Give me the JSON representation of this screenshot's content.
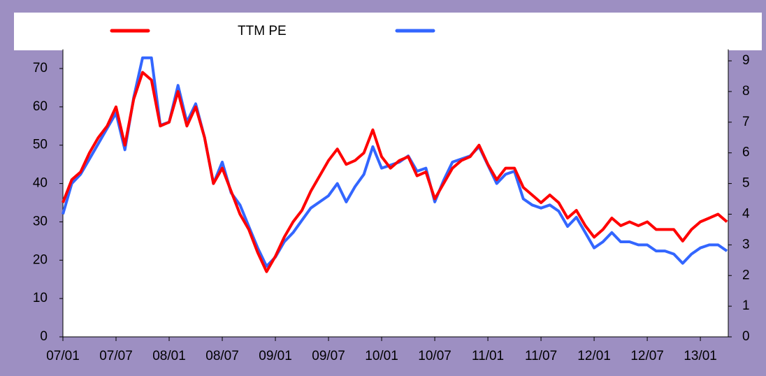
{
  "chart_data": {
    "type": "line",
    "categories": [
      "07/01",
      null,
      null,
      null,
      null,
      null,
      "07/07",
      null,
      null,
      null,
      null,
      null,
      "08/01",
      null,
      null,
      null,
      null,
      null,
      "08/07",
      null,
      null,
      null,
      null,
      null,
      "09/01",
      null,
      null,
      null,
      null,
      null,
      "09/07",
      null,
      null,
      null,
      null,
      null,
      "10/01",
      null,
      null,
      null,
      null,
      null,
      "10/07",
      null,
      null,
      null,
      null,
      null,
      "11/01",
      null,
      null,
      null,
      null,
      null,
      "11/07",
      null,
      null,
      null,
      null,
      null,
      "12/01",
      null,
      null,
      null,
      null,
      null,
      "12/07",
      null,
      null,
      null,
      null,
      null,
      "13/01",
      null,
      null,
      null
    ],
    "series": [
      {
        "name": "TTM PE",
        "color": "#ff0000",
        "axis": "y",
        "values": [
          35,
          41,
          43,
          48,
          52,
          55,
          60,
          50,
          62,
          69,
          67,
          55,
          56,
          64,
          55,
          60,
          52,
          40,
          44,
          38,
          32,
          28,
          22,
          17,
          21,
          26,
          30,
          33,
          38,
          42,
          46,
          49,
          45,
          46,
          48,
          54,
          47,
          44,
          46,
          47,
          42,
          43,
          36,
          40,
          44,
          46,
          47,
          50,
          45,
          41,
          44,
          44,
          39,
          37,
          35,
          37,
          35,
          31,
          33,
          29,
          26,
          28,
          31,
          29,
          30,
          29,
          30,
          28,
          28,
          28,
          25,
          28,
          30,
          31,
          32,
          30
        ]
      },
      {
        "color": "#3366ff",
        "axis": "y2",
        "values": [
          4.0,
          5.0,
          5.3,
          5.8,
          6.3,
          6.8,
          7.3,
          6.1,
          7.8,
          9.1,
          9.1,
          6.9,
          7.0,
          8.2,
          7.0,
          7.6,
          6.5,
          5.0,
          5.7,
          4.7,
          4.3,
          3.6,
          2.9,
          2.3,
          2.6,
          3.1,
          3.4,
          3.8,
          4.2,
          4.4,
          4.6,
          5.0,
          4.4,
          4.9,
          5.3,
          6.2,
          5.5,
          5.6,
          5.7,
          5.9,
          5.4,
          5.5,
          4.4,
          5.1,
          5.7,
          5.8,
          5.9,
          6.2,
          5.6,
          5.0,
          5.3,
          5.4,
          4.5,
          4.3,
          4.2,
          4.3,
          4.1,
          3.6,
          3.9,
          3.4,
          2.9,
          3.1,
          3.4,
          3.1,
          3.1,
          3.0,
          3.0,
          2.8,
          2.8,
          2.7,
          2.4,
          2.7,
          2.9,
          3.0,
          3.0,
          2.8
        ]
      }
    ],
    "ylim": [
      0,
      75
    ],
    "yticks": [
      0,
      10,
      20,
      30,
      40,
      50,
      60,
      70
    ],
    "y2lim": [
      0,
      9.375
    ],
    "y2ticks": [
      0,
      1,
      2,
      3,
      4,
      5,
      6,
      7,
      8,
      9
    ],
    "grid": false,
    "legend": "top"
  }
}
